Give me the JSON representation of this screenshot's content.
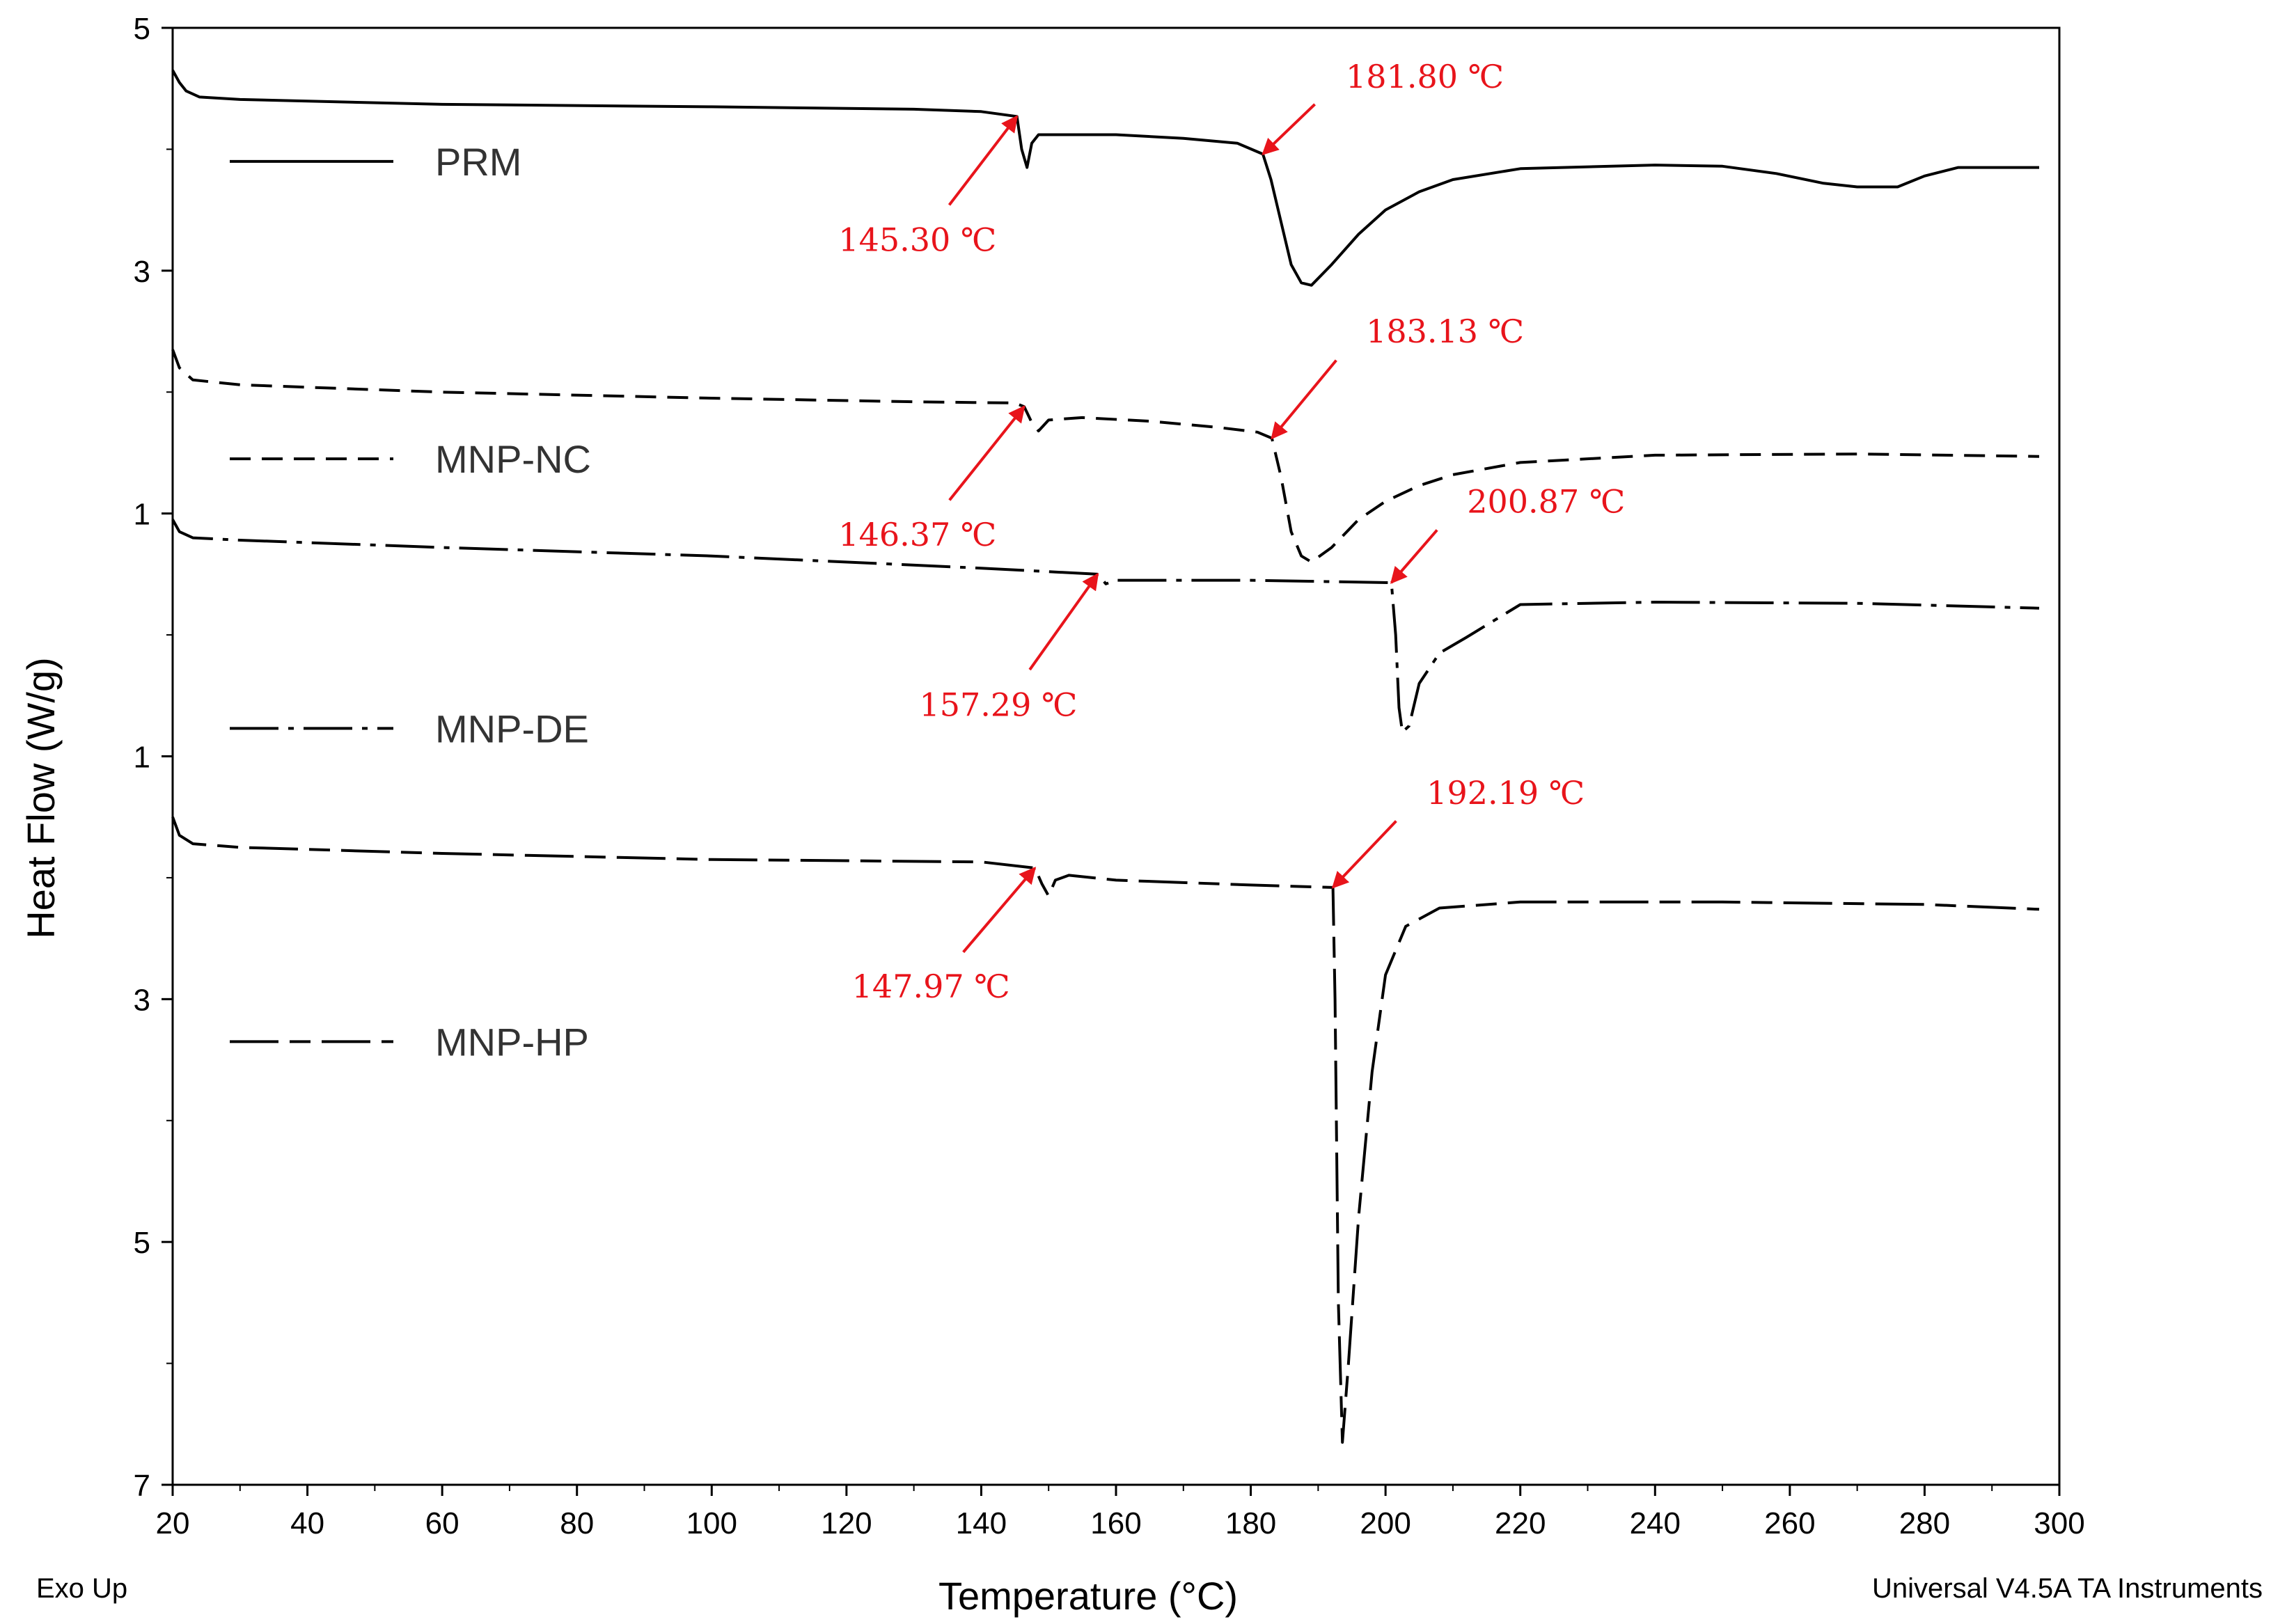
{
  "chart_data": {
    "type": "line",
    "title": "",
    "xlabel": "Temperature (°C)",
    "ylabel": "Heat Flow (W/g)",
    "xlim": [
      20,
      300
    ],
    "x_ticks": [
      20,
      40,
      60,
      80,
      100,
      120,
      140,
      160,
      180,
      200,
      220,
      240,
      260,
      280,
      300
    ],
    "y_ticks": [
      {
        "value": 5,
        "label": "5"
      },
      {
        "value": 3,
        "label": "3"
      },
      {
        "value": 1,
        "label": "1"
      },
      {
        "value": -1,
        "label": "1"
      },
      {
        "value": -3,
        "label": "3"
      },
      {
        "value": -5,
        "label": "5"
      },
      {
        "value": -7,
        "label": "7"
      }
    ],
    "ylim": [
      -7,
      5
    ],
    "bottom_left_note": "Exo Up",
    "bottom_right_note": "Universal V4.5A TA Instruments",
    "colors": {
      "line": "#000000",
      "annotation": "#e8141b"
    },
    "series": [
      {
        "name": "PRM",
        "dash": "solid",
        "points": [
          [
            20,
            4.65
          ],
          [
            21,
            4.55
          ],
          [
            22,
            4.48
          ],
          [
            24,
            4.43
          ],
          [
            30,
            4.41
          ],
          [
            60,
            4.37
          ],
          [
            100,
            4.35
          ],
          [
            130,
            4.33
          ],
          [
            140,
            4.31
          ],
          [
            145.3,
            4.27
          ],
          [
            146,
            4.0
          ],
          [
            146.8,
            3.85
          ],
          [
            147.5,
            4.05
          ],
          [
            148.5,
            4.12
          ],
          [
            160,
            4.12
          ],
          [
            170,
            4.09
          ],
          [
            178,
            4.05
          ],
          [
            181.8,
            3.96
          ],
          [
            183,
            3.75
          ],
          [
            184.5,
            3.4
          ],
          [
            186,
            3.05
          ],
          [
            187.5,
            2.9
          ],
          [
            189,
            2.88
          ],
          [
            192,
            3.05
          ],
          [
            196,
            3.3
          ],
          [
            200,
            3.5
          ],
          [
            205,
            3.65
          ],
          [
            210,
            3.75
          ],
          [
            220,
            3.84
          ],
          [
            240,
            3.87
          ],
          [
            250,
            3.86
          ],
          [
            258,
            3.8
          ],
          [
            265,
            3.72
          ],
          [
            270,
            3.69
          ],
          [
            276,
            3.69
          ],
          [
            280,
            3.78
          ],
          [
            285,
            3.85
          ],
          [
            297,
            3.85
          ]
        ]
      },
      {
        "name": "MNP-NC",
        "dash": "dashed",
        "points": [
          [
            20,
            2.35
          ],
          [
            21,
            2.2
          ],
          [
            23,
            2.1
          ],
          [
            30,
            2.06
          ],
          [
            60,
            2.0
          ],
          [
            100,
            1.95
          ],
          [
            130,
            1.92
          ],
          [
            145,
            1.91
          ],
          [
            146.37,
            1.88
          ],
          [
            147.5,
            1.75
          ],
          [
            148.5,
            1.68
          ],
          [
            150,
            1.77
          ],
          [
            155,
            1.79
          ],
          [
            165,
            1.76
          ],
          [
            175,
            1.71
          ],
          [
            181,
            1.67
          ],
          [
            183.13,
            1.62
          ],
          [
            184.5,
            1.3
          ],
          [
            186,
            0.85
          ],
          [
            187.5,
            0.65
          ],
          [
            189,
            0.6
          ],
          [
            192,
            0.72
          ],
          [
            196,
            0.95
          ],
          [
            200,
            1.1
          ],
          [
            205,
            1.23
          ],
          [
            210,
            1.32
          ],
          [
            220,
            1.42
          ],
          [
            240,
            1.48
          ],
          [
            270,
            1.49
          ],
          [
            297,
            1.47
          ]
        ]
      },
      {
        "name": "MNP-DE",
        "dash": "dashdot",
        "points": [
          [
            20,
            0.95
          ],
          [
            21,
            0.85
          ],
          [
            23,
            0.8
          ],
          [
            30,
            0.78
          ],
          [
            60,
            0.72
          ],
          [
            100,
            0.65
          ],
          [
            140,
            0.55
          ],
          [
            157.29,
            0.5
          ],
          [
            158.5,
            0.42
          ],
          [
            160,
            0.45
          ],
          [
            180,
            0.45
          ],
          [
            200.87,
            0.43
          ],
          [
            201.5,
            0.0
          ],
          [
            202,
            -0.6
          ],
          [
            202.5,
            -0.8
          ],
          [
            203.5,
            -0.75
          ],
          [
            205,
            -0.4
          ],
          [
            208,
            -0.15
          ],
          [
            212,
            -0.02
          ],
          [
            220,
            0.25
          ],
          [
            240,
            0.27
          ],
          [
            270,
            0.26
          ],
          [
            297,
            0.22
          ]
        ]
      },
      {
        "name": "MNP-HP",
        "dash": "dashdash",
        "points": [
          [
            20,
            -1.5
          ],
          [
            21,
            -1.65
          ],
          [
            23,
            -1.72
          ],
          [
            30,
            -1.75
          ],
          [
            60,
            -1.8
          ],
          [
            100,
            -1.85
          ],
          [
            140,
            -1.87
          ],
          [
            147.97,
            -1.92
          ],
          [
            149,
            -2.05
          ],
          [
            150,
            -2.15
          ],
          [
            151,
            -2.02
          ],
          [
            153,
            -1.98
          ],
          [
            160,
            -2.02
          ],
          [
            180,
            -2.06
          ],
          [
            192.19,
            -2.08
          ],
          [
            192.5,
            -3.0
          ],
          [
            193,
            -5.5
          ],
          [
            193.6,
            -6.65
          ],
          [
            194.5,
            -6.0
          ],
          [
            196,
            -4.8
          ],
          [
            198,
            -3.6
          ],
          [
            200,
            -2.8
          ],
          [
            203,
            -2.4
          ],
          [
            208,
            -2.25
          ],
          [
            220,
            -2.2
          ],
          [
            250,
            -2.2
          ],
          [
            280,
            -2.22
          ],
          [
            297,
            -2.26
          ]
        ]
      }
    ],
    "legend": [
      {
        "series": "PRM",
        "label": "PRM",
        "y": 3.9
      },
      {
        "series": "MNP-NC",
        "label": "MNP-NC",
        "y": 1.45
      },
      {
        "series": "MNP-DE",
        "label": "MNP-DE",
        "y": -0.77
      },
      {
        "series": "MNP-HP",
        "label": "MNP-HP",
        "y": -3.35
      }
    ],
    "annotations": [
      {
        "text": "145.30 ℃",
        "target": [
          145.3,
          4.27
        ],
        "label_at": [
          134,
          3.45
        ]
      },
      {
        "text": "181.80 ℃",
        "target": [
          181.8,
          3.96
        ],
        "label_at": [
          191,
          4.45
        ]
      },
      {
        "text": "146.37 ℃",
        "target": [
          146.37,
          1.88
        ],
        "label_at": [
          134,
          1.02
        ]
      },
      {
        "text": "183.13 ℃",
        "target": [
          183.13,
          1.62
        ],
        "label_at": [
          194,
          2.35
        ]
      },
      {
        "text": "157.29 ℃",
        "target": [
          157.29,
          0.5
        ],
        "label_at": [
          146,
          -0.38
        ]
      },
      {
        "text": "200.87 ℃",
        "target": [
          200.87,
          0.43
        ],
        "label_at": [
          209,
          0.95
        ]
      },
      {
        "text": "147.97 ℃",
        "target": [
          147.97,
          -1.92
        ],
        "label_at": [
          136,
          -2.7
        ]
      },
      {
        "text": "192.19 ℃",
        "target": [
          192.19,
          -2.08
        ],
        "label_at": [
          203,
          -1.45
        ]
      }
    ]
  }
}
